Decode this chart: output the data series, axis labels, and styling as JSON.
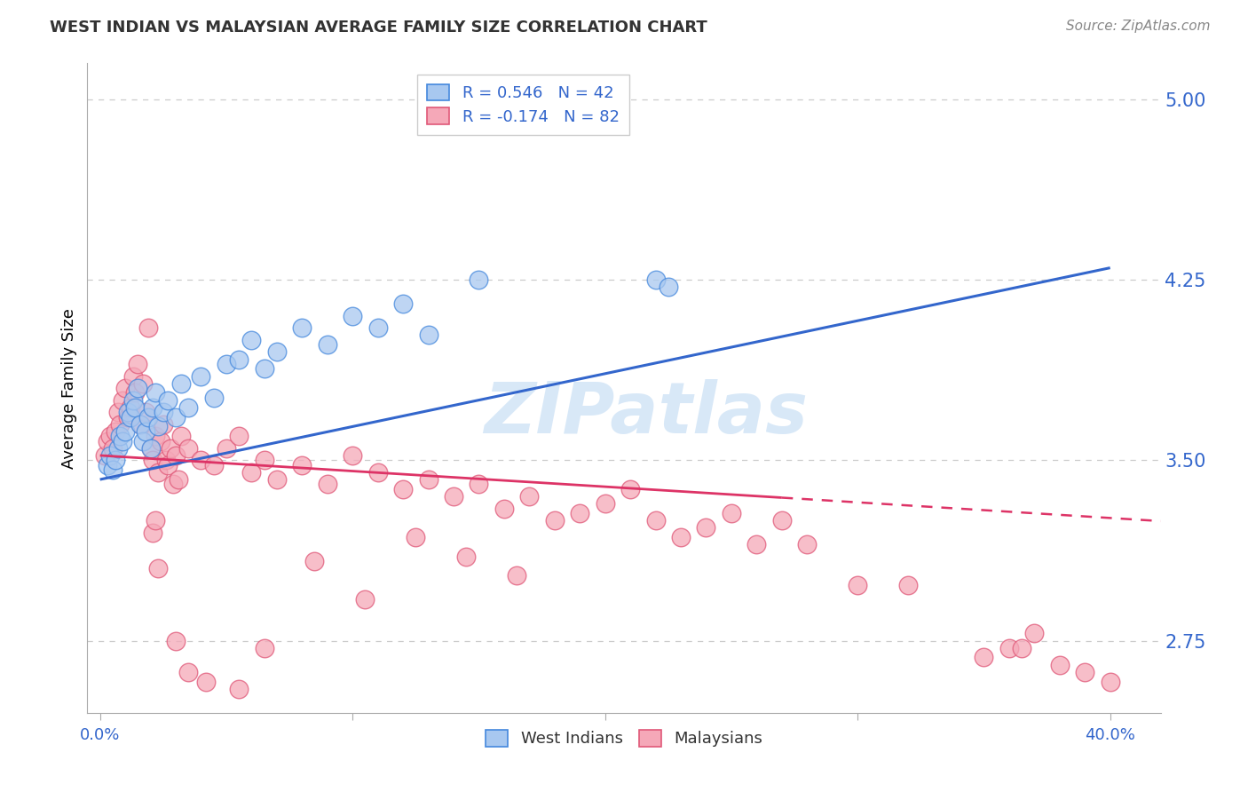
{
  "title": "WEST INDIAN VS MALAYSIAN AVERAGE FAMILY SIZE CORRELATION CHART",
  "source": "Source: ZipAtlas.com",
  "ylabel": "Average Family Size",
  "yticks": [
    2.75,
    3.5,
    4.25,
    5.0
  ],
  "xlim": [
    -0.5,
    42.0
  ],
  "ylim": [
    2.45,
    5.15
  ],
  "blue_R": 0.546,
  "blue_N": 42,
  "pink_R": -0.174,
  "pink_N": 82,
  "blue_fill": "#A8C8F0",
  "pink_fill": "#F5A8B8",
  "blue_edge": "#4488DD",
  "pink_edge": "#E05878",
  "blue_line": "#3366CC",
  "pink_line": "#DD3366",
  "watermark": "ZIPatlas",
  "blue_intercept": 3.42,
  "blue_slope": 0.022,
  "pink_intercept": 3.52,
  "pink_slope": -0.0065,
  "pink_dash_start": 27.0,
  "blue_x": [
    0.3,
    0.4,
    0.5,
    0.6,
    0.7,
    0.8,
    0.9,
    1.0,
    1.1,
    1.2,
    1.3,
    1.4,
    1.5,
    1.6,
    1.7,
    1.8,
    1.9,
    2.0,
    2.1,
    2.2,
    2.3,
    2.5,
    2.7,
    3.0,
    3.2,
    3.5,
    4.0,
    4.5,
    5.0,
    5.5,
    6.0,
    6.5,
    7.0,
    8.0,
    9.0,
    10.0,
    11.0,
    12.0,
    13.0,
    15.0,
    22.0,
    22.5
  ],
  "blue_y": [
    3.48,
    3.52,
    3.46,
    3.5,
    3.55,
    3.6,
    3.58,
    3.62,
    3.7,
    3.68,
    3.75,
    3.72,
    3.8,
    3.65,
    3.58,
    3.62,
    3.68,
    3.55,
    3.72,
    3.78,
    3.64,
    3.7,
    3.75,
    3.68,
    3.82,
    3.72,
    3.85,
    3.76,
    3.9,
    3.92,
    4.0,
    3.88,
    3.95,
    4.05,
    3.98,
    4.1,
    4.05,
    4.15,
    4.02,
    4.25,
    4.25,
    4.22
  ],
  "pink_x": [
    0.2,
    0.3,
    0.4,
    0.5,
    0.6,
    0.7,
    0.8,
    0.9,
    1.0,
    1.1,
    1.2,
    1.3,
    1.4,
    1.5,
    1.6,
    1.7,
    1.8,
    1.9,
    2.0,
    2.1,
    2.2,
    2.3,
    2.4,
    2.5,
    2.6,
    2.7,
    2.8,
    2.9,
    3.0,
    3.1,
    3.2,
    3.5,
    4.0,
    4.5,
    5.0,
    5.5,
    6.0,
    6.5,
    7.0,
    8.0,
    9.0,
    10.0,
    11.0,
    12.0,
    13.0,
    14.0,
    15.0,
    16.0,
    17.0,
    18.0,
    19.0,
    20.0,
    21.0,
    22.0,
    23.0,
    24.0,
    25.0,
    26.0,
    27.0,
    28.0,
    30.0,
    32.0,
    35.0,
    36.0,
    36.5,
    37.0,
    38.0,
    39.0,
    40.0,
    2.1,
    2.2,
    2.3,
    3.0,
    3.5,
    4.2,
    5.5,
    6.5,
    8.5,
    10.5,
    12.5,
    14.5,
    16.5
  ],
  "pink_y": [
    3.52,
    3.58,
    3.6,
    3.55,
    3.62,
    3.7,
    3.65,
    3.75,
    3.8,
    3.68,
    3.72,
    3.85,
    3.78,
    3.9,
    3.65,
    3.82,
    3.7,
    4.05,
    3.55,
    3.5,
    3.6,
    3.45,
    3.58,
    3.65,
    3.5,
    3.48,
    3.55,
    3.4,
    3.52,
    3.42,
    3.6,
    3.55,
    3.5,
    3.48,
    3.55,
    3.6,
    3.45,
    3.5,
    3.42,
    3.48,
    3.4,
    3.52,
    3.45,
    3.38,
    3.42,
    3.35,
    3.4,
    3.3,
    3.35,
    3.25,
    3.28,
    3.32,
    3.38,
    3.25,
    3.18,
    3.22,
    3.28,
    3.15,
    3.25,
    3.15,
    2.98,
    2.98,
    2.68,
    2.72,
    2.72,
    2.78,
    2.65,
    2.62,
    2.58,
    3.2,
    3.25,
    3.05,
    2.75,
    2.62,
    2.58,
    2.55,
    2.72,
    3.08,
    2.92,
    3.18,
    3.1,
    3.02
  ]
}
